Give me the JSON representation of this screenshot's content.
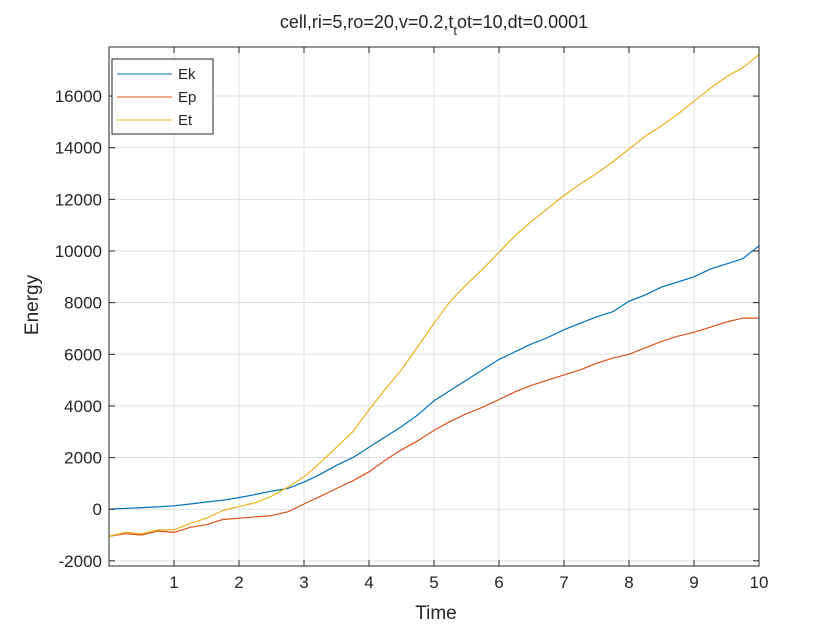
{
  "chart_data": {
    "type": "line",
    "title": "cell,ri=5,ro=20,v=0.2,t",
    "title_sub": "t",
    "title_rest": "ot=10,dt=0.0001",
    "xlabel": "Time",
    "ylabel": "Energy",
    "xlim": [
      0,
      10
    ],
    "ylim": [
      -2200,
      17900
    ],
    "x_ticks": [
      1,
      2,
      3,
      4,
      5,
      6,
      7,
      8,
      9,
      10
    ],
    "x_tick_labels": [
      "1",
      "2",
      "3",
      "4",
      "5",
      "6",
      "7",
      "8",
      "9",
      "10"
    ],
    "y_ticks": [
      -2000,
      0,
      2000,
      4000,
      6000,
      8000,
      10000,
      12000,
      14000,
      16000
    ],
    "y_tick_labels": [
      "-2000",
      "0",
      "2000",
      "4000",
      "6000",
      "8000",
      "10000",
      "12000",
      "14000",
      "16000"
    ],
    "grid": true,
    "legend_position": "top-left",
    "x": [
      0,
      0.25,
      0.5,
      0.75,
      1,
      1.25,
      1.5,
      1.75,
      2,
      2.25,
      2.5,
      2.75,
      3,
      3.25,
      3.5,
      3.75,
      4,
      4.25,
      4.5,
      4.75,
      5,
      5.25,
      5.5,
      5.75,
      6,
      6.25,
      6.5,
      6.75,
      7,
      7.25,
      7.5,
      7.75,
      8,
      8.25,
      8.5,
      8.75,
      9,
      9.25,
      9.5,
      9.75,
      10
    ],
    "series": [
      {
        "name": "Ek",
        "color": "#0072BD",
        "values": [
          0,
          30,
          60,
          90,
          130,
          200,
          280,
          350,
          450,
          570,
          700,
          800,
          1050,
          1350,
          1700,
          2000,
          2400,
          2800,
          3200,
          3650,
          4200,
          4600,
          5000,
          5400,
          5800,
          6100,
          6400,
          6650,
          6950,
          7200,
          7450,
          7650,
          8050,
          8300,
          8600,
          8800,
          9000,
          9300,
          9500,
          9700,
          10200
        ]
      },
      {
        "name": "Ep",
        "color": "#D95319",
        "values": [
          -1050,
          -950,
          -1000,
          -850,
          -900,
          -700,
          -600,
          -400,
          -350,
          -300,
          -250,
          -100,
          200,
          500,
          800,
          1100,
          1450,
          1900,
          2300,
          2650,
          3050,
          3400,
          3700,
          3950,
          4250,
          4550,
          4800,
          5000,
          5200,
          5400,
          5650,
          5850,
          6000,
          6250,
          6500,
          6700,
          6850,
          7050,
          7250,
          7400,
          7400
        ]
      },
      {
        "name": "Et",
        "color": "#EDB120",
        "values": [
          -1050,
          -900,
          -950,
          -800,
          -800,
          -550,
          -350,
          -50,
          100,
          250,
          500,
          850,
          1250,
          1800,
          2400,
          3000,
          3850,
          4650,
          5400,
          6300,
          7200,
          8050,
          8700,
          9300,
          9950,
          10600,
          11150,
          11650,
          12150,
          12600,
          13000,
          13450,
          13950,
          14450,
          14850,
          15300,
          15800,
          16300,
          16750,
          17100,
          17600
        ]
      }
    ]
  }
}
